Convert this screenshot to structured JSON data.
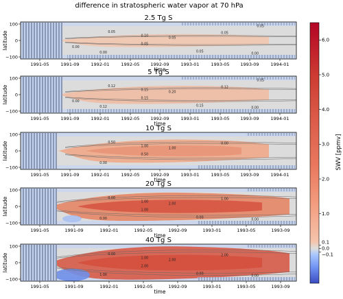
{
  "figure": {
    "suptitle": "difference in stratospheric water vapor at 70 hPa"
  },
  "chart_data": {
    "type": "heatmap",
    "panels": [
      {
        "title": "2.5 Tg S",
        "xlabel": "time",
        "ylabel": "latitude",
        "yticks": [
          "100",
          "0",
          "−100"
        ],
        "xticks": [
          "1991-05",
          "1991-09",
          "1992-01",
          "1992-05",
          "1992-09",
          "1993-01",
          "1993-05",
          "1993-09",
          "1994-01"
        ],
        "contour_labels": [
          "0.05",
          "0.10",
          "0.05",
          "0.05",
          "0.05",
          "0.00",
          "0.05",
          "0.00",
          "0.05",
          "0.00"
        ],
        "max_anomaly_ppmv": 0.2,
        "color": "#f2c6b0"
      },
      {
        "title": "5 Tg S",
        "xlabel": "time",
        "ylabel": "latitude",
        "yticks": [
          "100",
          "0",
          "−100"
        ],
        "xticks": [
          "1991-05",
          "1991-09",
          "1992-01",
          "1992-05",
          "1992-09",
          "1993-01",
          "1993-05",
          "1993-09",
          "1994-01"
        ],
        "contour_labels": [
          "0.12",
          "0.15",
          "0.20",
          "0.15",
          "0.12",
          "0.12",
          "0.15",
          "0.00",
          "0.05",
          "0.00"
        ],
        "max_anomaly_ppmv": 0.3,
        "color": "#efbba3"
      },
      {
        "title": "10 Tg S",
        "xlabel": "time",
        "ylabel": "latitude",
        "yticks": [
          "100",
          "0",
          "−100"
        ],
        "xticks": [
          "1991-05",
          "1991-09",
          "1992-01",
          "1992-05",
          "1992-09",
          "1993-01",
          "1993-05",
          "1993-09",
          "1994-01"
        ],
        "contour_labels": [
          "0.50",
          "1.00",
          "1.00",
          "0.50",
          "0.00",
          "0.00"
        ],
        "max_anomaly_ppmv": 1.5,
        "color": "#eea88a"
      },
      {
        "title": "20 Tg S",
        "xlabel": "time",
        "ylabel": "latitude",
        "yticks": [
          "100",
          "0",
          "−100"
        ],
        "xticks": [
          "1991-05",
          "1991-09",
          "1992-01",
          "1992-05",
          "1992-09",
          "1993-01",
          "1993-05",
          "1993-09"
        ],
        "contour_labels": [
          "0.00",
          "1.00",
          "2.00",
          "1.00",
          "1.00",
          "0.00",
          "0.00",
          "0.00"
        ],
        "max_anomaly_ppmv": 2.5,
        "color": "#e48566"
      },
      {
        "title": "40 Tg S",
        "xlabel": "time",
        "ylabel": "latitude",
        "yticks": [
          "100",
          "0",
          "−100"
        ],
        "xticks": [
          "1991-05",
          "1991-09",
          "1992-01",
          "1992-05",
          "1992-09",
          "1993-01",
          "1993-05",
          "1993-09"
        ],
        "contour_labels": [
          "0.00",
          "1.00",
          "2.00",
          "2.00",
          "2.00",
          "1.00",
          "0.00",
          "0.00"
        ],
        "max_anomaly_ppmv": 4.0,
        "color": "#d65a47"
      }
    ],
    "colorbar": {
      "label": "SWV [ppmv]",
      "range": [
        -1.0,
        6.5
      ],
      "ticks": [
        6.0,
        5.0,
        4.0,
        3.0,
        2.0,
        1.0,
        0.1,
        0.0,
        -0.1
      ],
      "tick_labels": [
        "6.0",
        "5.0",
        "4.0",
        "3.0",
        "2.0",
        "1.0",
        "0.1",
        "0.0",
        "−0.1"
      ],
      "colormap": "coolwarm"
    }
  }
}
